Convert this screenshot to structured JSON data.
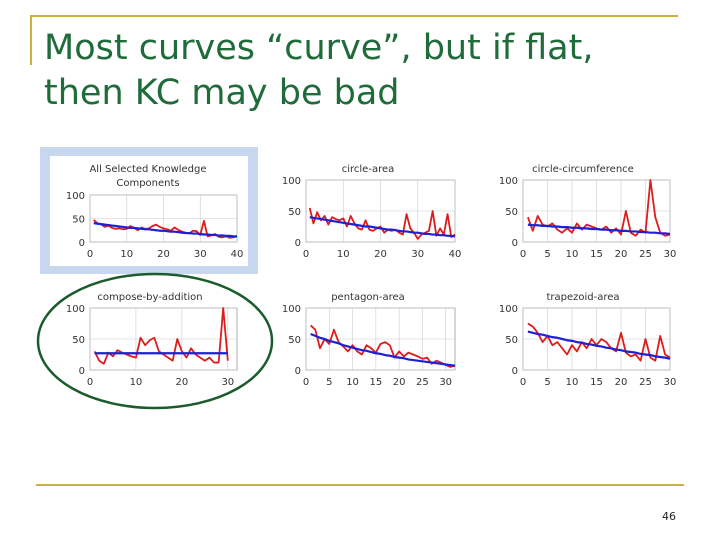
{
  "slide": {
    "title_line1": "Most curves “curve”, but if flat,",
    "title_line2": "then KC may be bad",
    "page_number": "46"
  },
  "colors": {
    "title": "#1f6b3a",
    "accent_rule": "#c8b43c",
    "observed_line": "#dd1c1c",
    "predicted_line": "#1f1fd6",
    "highlight_box": "#c6d7ee",
    "highlight_ellipse": "#1a5c2c",
    "grid": "#cccccc"
  },
  "chart_data": [
    {
      "type": "line",
      "title_lines": [
        "All Selected Knowledge",
        "Components"
      ],
      "xlim": [
        0,
        40
      ],
      "xticks": [
        0,
        10,
        20,
        30,
        40
      ],
      "ylim": [
        0,
        100
      ],
      "yticks": [
        0,
        50,
        100
      ],
      "highlight": "box",
      "series": [
        {
          "name": "observed",
          "color": "#dd1c1c",
          "values": [
            47,
            40,
            38,
            32,
            35,
            30,
            28,
            29,
            27,
            28,
            34,
            30,
            25,
            31,
            28,
            29,
            34,
            37,
            32,
            29,
            27,
            24,
            31,
            26,
            22,
            20,
            18,
            24,
            23,
            15,
            45,
            12,
            14,
            17,
            11,
            10,
            12,
            9,
            10,
            12
          ]
        },
        {
          "name": "predicted",
          "color": "#1f1fd6",
          "values": [
            40,
            39,
            38,
            37,
            36,
            35,
            34,
            33,
            32,
            31,
            30,
            30,
            29,
            28,
            27,
            27,
            26,
            25,
            24,
            24,
            23,
            22,
            22,
            21,
            20,
            19,
            19,
            18,
            18,
            17,
            16,
            16,
            15,
            15,
            14,
            14,
            13,
            13,
            12,
            12
          ]
        }
      ]
    },
    {
      "type": "line",
      "title_lines": [
        "circle-area"
      ],
      "xlim": [
        0,
        40
      ],
      "xticks": [
        0,
        10,
        20,
        30,
        40
      ],
      "ylim": [
        0,
        100
      ],
      "yticks": [
        0,
        50,
        100
      ],
      "series": [
        {
          "name": "observed",
          "color": "#dd1c1c",
          "values": [
            55,
            30,
            48,
            35,
            42,
            28,
            40,
            37,
            35,
            38,
            25,
            42,
            30,
            22,
            20,
            35,
            20,
            18,
            22,
            25,
            15,
            20,
            18,
            20,
            15,
            12,
            45,
            22,
            15,
            5,
            12,
            15,
            18,
            50,
            10,
            22,
            12,
            45,
            8,
            12
          ]
        },
        {
          "name": "predicted",
          "color": "#1f1fd6",
          "values": [
            40,
            39,
            38,
            37,
            36,
            35,
            34,
            33,
            32,
            31,
            30,
            29,
            28,
            27,
            26,
            25,
            25,
            24,
            23,
            22,
            21,
            20,
            20,
            19,
            18,
            17,
            17,
            16,
            15,
            15,
            14,
            13,
            13,
            12,
            12,
            11,
            11,
            10,
            10,
            9
          ]
        }
      ]
    },
    {
      "type": "line",
      "title_lines": [
        "circle-circumference"
      ],
      "xlim": [
        0,
        30
      ],
      "xticks": [
        0,
        5,
        10,
        15,
        20,
        25,
        30
      ],
      "ylim": [
        0,
        100
      ],
      "yticks": [
        0,
        50,
        100
      ],
      "series": [
        {
          "name": "observed",
          "color": "#dd1c1c",
          "values": [
            40,
            18,
            42,
            28,
            25,
            30,
            20,
            15,
            22,
            15,
            30,
            20,
            28,
            25,
            22,
            20,
            25,
            15,
            22,
            12,
            50,
            15,
            10,
            20,
            15,
            100,
            40,
            15,
            10,
            12
          ]
        },
        {
          "name": "predicted",
          "color": "#1f1fd6",
          "values": [
            28,
            27,
            27,
            26,
            26,
            25,
            25,
            24,
            24,
            23,
            23,
            22,
            22,
            21,
            21,
            20,
            20,
            19,
            19,
            18,
            18,
            17,
            17,
            16,
            16,
            15,
            15,
            14,
            14,
            13
          ]
        }
      ]
    },
    {
      "type": "line",
      "title_lines": [
        "compose-by-addition"
      ],
      "xlim": [
        0,
        32
      ],
      "xticks": [
        0,
        10,
        20,
        30
      ],
      "ylim": [
        0,
        100
      ],
      "yticks": [
        0,
        50,
        100
      ],
      "highlight": "ellipse",
      "series": [
        {
          "name": "observed",
          "color": "#dd1c1c",
          "values": [
            30,
            15,
            10,
            28,
            22,
            32,
            28,
            25,
            22,
            20,
            52,
            40,
            48,
            52,
            30,
            25,
            20,
            15,
            50,
            30,
            20,
            35,
            25,
            20,
            15,
            20,
            12,
            12,
            100,
            15
          ]
        },
        {
          "name": "predicted",
          "color": "#1f1fd6",
          "values": [
            27,
            27,
            27,
            27,
            27,
            27,
            27,
            27,
            27,
            27,
            27,
            27,
            27,
            27,
            27,
            27,
            27,
            27,
            27,
            27,
            27,
            27,
            27,
            27,
            27,
            27,
            27,
            27,
            27,
            27
          ]
        }
      ]
    },
    {
      "type": "line",
      "title_lines": [
        "pentagon-area"
      ],
      "xlim": [
        0,
        32
      ],
      "xticks": [
        0,
        5,
        10,
        15,
        20,
        25,
        30
      ],
      "ylim": [
        0,
        100
      ],
      "yticks": [
        0,
        50,
        100
      ],
      "series": [
        {
          "name": "observed",
          "color": "#dd1c1c",
          "values": [
            72,
            65,
            35,
            50,
            42,
            65,
            45,
            38,
            30,
            40,
            30,
            25,
            40,
            35,
            28,
            42,
            45,
            40,
            20,
            30,
            22,
            28,
            25,
            22,
            18,
            20,
            10,
            15,
            12,
            8,
            5,
            7
          ]
        },
        {
          "name": "predicted",
          "color": "#1f1fd6",
          "values": [
            58,
            55,
            52,
            50,
            47,
            45,
            43,
            40,
            38,
            36,
            34,
            32,
            31,
            29,
            27,
            26,
            24,
            23,
            21,
            20,
            19,
            17,
            16,
            15,
            14,
            13,
            12,
            11,
            10,
            9,
            8,
            7
          ]
        }
      ]
    },
    {
      "type": "line",
      "title_lines": [
        "trapezoid-area"
      ],
      "xlim": [
        0,
        30
      ],
      "xticks": [
        0,
        5,
        10,
        15,
        20,
        25,
        30
      ],
      "ylim": [
        0,
        100
      ],
      "yticks": [
        0,
        50,
        100
      ],
      "series": [
        {
          "name": "observed",
          "color": "#dd1c1c",
          "values": [
            75,
            70,
            60,
            45,
            55,
            40,
            45,
            35,
            25,
            40,
            30,
            45,
            35,
            50,
            40,
            50,
            45,
            35,
            30,
            60,
            28,
            22,
            25,
            15,
            50,
            20,
            15,
            55,
            25,
            20
          ]
        },
        {
          "name": "predicted",
          "color": "#1f1fd6",
          "values": [
            62,
            60,
            58,
            57,
            55,
            53,
            52,
            50,
            48,
            47,
            45,
            44,
            42,
            41,
            39,
            38,
            36,
            35,
            33,
            32,
            30,
            29,
            28,
            26,
            25,
            24,
            22,
            21,
            20,
            18
          ]
        }
      ]
    }
  ]
}
